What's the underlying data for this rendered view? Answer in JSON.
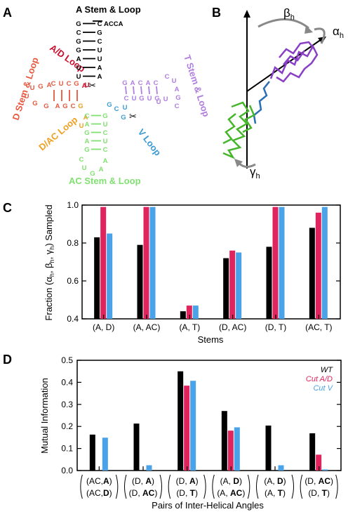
{
  "panel_a": {
    "panel_label": "A",
    "title": "A Stem & Loop",
    "labels": {
      "ad_loop": "A/D Loop",
      "d_stem": "D Stem & Loop",
      "t_stem": "T Stem & Loop",
      "dac_loop": "D/AC Loop",
      "v_loop": "V Loop",
      "ac_stem": "AC Stem & Loop"
    },
    "tail": "ACCA",
    "a_stem_left": [
      "G",
      "C",
      "G",
      "G",
      "A",
      "U",
      "U"
    ],
    "a_stem_right": [
      "C",
      "G",
      "C",
      "U",
      "U",
      "A",
      "A"
    ],
    "ad_junction": "U",
    "d_top": [
      "C",
      "U",
      "C",
      "G"
    ],
    "d_loop": [
      "A",
      "G",
      "U",
      "U",
      "G",
      "G"
    ],
    "d_bottom": [
      "A",
      "G",
      "C"
    ],
    "d_top_extra": "A",
    "d_bottom_extra": "G",
    "t_top": [
      "G",
      "A",
      "C",
      "A",
      "C"
    ],
    "t_bottom": [
      "C",
      "U",
      "G",
      "U",
      "G"
    ],
    "t_loop_top": [
      "C",
      "U"
    ],
    "t_loop_right": [
      "A",
      "G",
      "C"
    ],
    "t_loop_bottom": [
      "U",
      "U"
    ],
    "v_loop": [
      "C",
      "U",
      "G"
    ],
    "ac_junction": [
      "A",
      "U"
    ],
    "ac_left": [
      "C",
      "A",
      "G",
      "A",
      "G"
    ],
    "ac_right": [
      "G",
      "U",
      "C",
      "U",
      "C"
    ],
    "ac_loop": [
      "C",
      "U",
      "G",
      "A",
      "A"
    ],
    "colors": {
      "a_stem": "#000000",
      "ad_loop": "#c8102e",
      "d_stem": "#e8583f",
      "t_stem": "#b07de0",
      "dac_loop": "#f0a020",
      "v_loop": "#3a9bd5",
      "ac_stem": "#80e070"
    }
  },
  "panel_b": {
    "panel_label": "B",
    "alpha": "α",
    "beta": "β",
    "gamma": "γ",
    "subscript": "h",
    "colors": {
      "top_helix": "#8a3fc7",
      "linker": "#2a6fb5",
      "bottom_helix": "#45b52a"
    }
  },
  "chart_data": [
    {
      "panel_label": "C",
      "type": "bar",
      "ylabel": "Fraction (α_h, β_h, γ_h) Sampled",
      "xlabel": "Stems",
      "categories": [
        "(A, D)",
        "(A, AC)",
        "(A, T)",
        "(D, AC)",
        "(D, T)",
        "(AC, T)"
      ],
      "ylim": [
        0.4,
        1.0
      ],
      "yticks": [
        "0.4",
        "0.6",
        "0.8",
        "1.0"
      ],
      "series": [
        {
          "name": "WT",
          "color": "#000000",
          "values": [
            0.83,
            0.79,
            0.44,
            0.72,
            0.78,
            0.88
          ]
        },
        {
          "name": "Cut A/D",
          "color": "#e0245e",
          "values": [
            0.99,
            0.99,
            0.47,
            0.76,
            0.99,
            0.96
          ]
        },
        {
          "name": "Cut V",
          "color": "#4aa3e8",
          "values": [
            0.85,
            0.99,
            0.47,
            0.75,
            0.99,
            0.99
          ]
        }
      ]
    },
    {
      "panel_label": "D",
      "type": "bar",
      "ylabel": "Mutual Information",
      "xlabel": "Pairs of Inter-Helical Angles",
      "categories": [
        [
          "AC,",
          "A",
          "AC,",
          "D"
        ],
        [
          "D, ",
          "A",
          "D, ",
          "AC"
        ],
        [
          "D, ",
          "A",
          "D, ",
          "T"
        ],
        [
          "A, ",
          "D",
          "A, ",
          "AC"
        ],
        [
          "A, ",
          "D",
          "A, ",
          "T"
        ],
        [
          "D, ",
          "AC",
          "D, ",
          "T"
        ]
      ],
      "ylim": [
        0,
        0.5
      ],
      "yticks": [
        "0.0",
        "0.1",
        "0.2",
        "0.3",
        "0.4",
        "0.5"
      ],
      "legend": [
        "WT",
        "Cut A/D",
        "Cut V"
      ],
      "series": [
        {
          "name": "WT",
          "color": "#000000",
          "values": [
            0.163,
            0.213,
            0.45,
            0.27,
            0.204,
            0.169
          ]
        },
        {
          "name": "Cut A/D",
          "color": "#e0245e",
          "values": [
            0,
            0,
            0.385,
            0.181,
            0,
            0.072
          ]
        },
        {
          "name": "Cut V",
          "color": "#4aa3e8",
          "values": [
            0.149,
            0.024,
            0.407,
            0.196,
            0.024,
            0.005
          ]
        }
      ]
    }
  ]
}
